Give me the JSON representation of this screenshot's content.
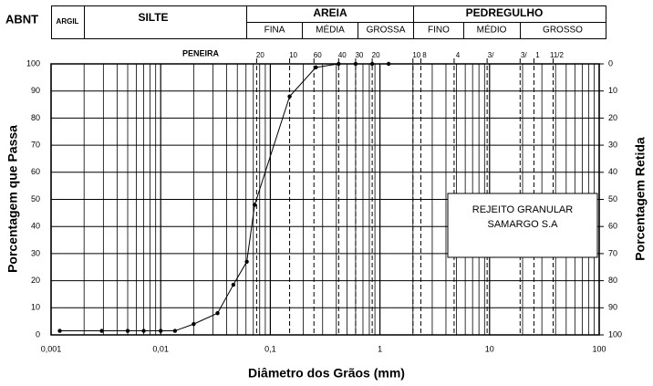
{
  "header": {
    "system": "ABNT",
    "clay": "ARGIL",
    "silt": "SILTE",
    "sand": {
      "name": "AREIA",
      "fine": "FINA",
      "medium": "MÉDIA",
      "coarse": "GROSSA"
    },
    "gravel": {
      "name": "PEDREGULHO",
      "fine": "FINO",
      "medium": "MÉDIO",
      "coarse": "GROSSO"
    }
  },
  "chart_data": {
    "type": "line",
    "x_label": "Diâmetro dos Grãos (mm)",
    "y_label": "Porcentagem que Passa",
    "y2_label": "Porcentagem Retida",
    "log_x": true,
    "grid": true,
    "xlim": [
      0.001,
      100
    ],
    "xticks": [
      {
        "value": 0.001,
        "label": "0,001"
      },
      {
        "value": 0.01,
        "label": "0,01"
      },
      {
        "value": 0.1,
        "label": "0,1"
      },
      1,
      10,
      100
    ],
    "ylim": [
      0,
      100
    ],
    "yticks": [
      0,
      10,
      20,
      30,
      40,
      50,
      60,
      70,
      80,
      90,
      100
    ],
    "y2lim": [
      100,
      0
    ],
    "y2ticks": [
      0,
      10,
      20,
      30,
      40,
      50,
      60,
      70,
      80,
      90,
      100
    ],
    "sieve_title": "PENEIRA",
    "sieves": [
      {
        "label": "20",
        "value": 0.075
      },
      {
        "label": "10",
        "value": 0.15
      },
      {
        "label": "60",
        "value": 0.25
      },
      {
        "label": "40",
        "value": 0.42
      },
      {
        "label": "30",
        "value": 0.6
      },
      {
        "label": "20",
        "value": 0.85
      },
      {
        "label": "10",
        "value": 2
      },
      {
        "label": "8",
        "value": 2.36
      },
      {
        "label": "4",
        "value": 4.75
      },
      {
        "label": "3/",
        "value": 9.5
      },
      {
        "label": "3/",
        "value": 19
      },
      {
        "label": "1",
        "value": 25.4
      },
      {
        "label": "11/2",
        "value": 38
      }
    ],
    "annotation": [
      "REJEITO GRANULAR",
      "SAMARGO S.A"
    ],
    "series": [
      {
        "color": "#000000",
        "x": [
          0.0012,
          0.0029,
          0.005,
          0.007,
          0.01,
          0.0135,
          0.02,
          0.033,
          0.046,
          0.061,
          0.072,
          0.15,
          0.26,
          0.42,
          0.6,
          0.85,
          1.2
        ],
        "values": [
          1.5,
          1.5,
          1.5,
          1.5,
          1.5,
          1.5,
          4,
          8,
          18.5,
          27,
          48,
          88,
          98.7,
          100,
          100,
          100,
          100
        ]
      }
    ]
  }
}
